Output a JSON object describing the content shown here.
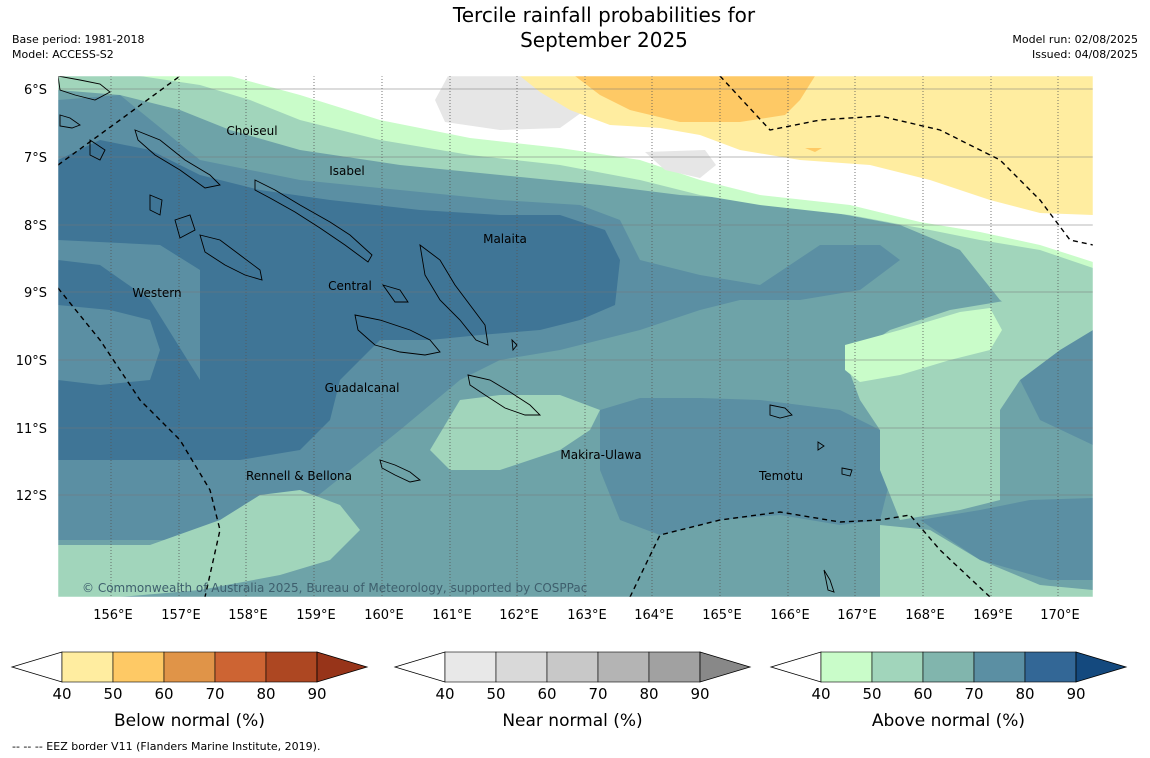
{
  "title": {
    "line1": "Tercile rainfall probabilities for",
    "line2": "September 2025"
  },
  "meta_left": {
    "base_period": "Base period: 1981-2018",
    "model": "Model: ACCESS-S2"
  },
  "meta_right": {
    "model_run": "Model run: 02/08/2025",
    "issued": "Issued: 04/08/2025"
  },
  "map": {
    "lat_labels": [
      "6°S",
      "7°S",
      "8°S",
      "9°S",
      "10°S",
      "11°S",
      "12°S"
    ],
    "lon_labels": [
      "156°E",
      "157°E",
      "158°E",
      "159°E",
      "160°E",
      "161°E",
      "162°E",
      "163°E",
      "164°E",
      "165°E",
      "166°E",
      "167°E",
      "168°E",
      "169°E",
      "170°E"
    ],
    "provinces": [
      "Choiseul",
      "Isabel",
      "Malaita",
      "Western",
      "Central",
      "Guadalcanal",
      "Makira-Ulawa",
      "Rennell & Bellona",
      "Temotu"
    ],
    "copyright": "© Commonwealth of Australia 2025, Bureau of Meteorology, supported by COSPPac"
  },
  "legends": [
    {
      "title": "Below normal (%)",
      "ticks": [
        "40",
        "50",
        "60",
        "70",
        "80",
        "90"
      ],
      "colors": [
        "#ffeda0",
        "#fec965",
        "#e09448",
        "#cd6433",
        "#ad4722",
        "#973419"
      ]
    },
    {
      "title": "Near normal (%)",
      "ticks": [
        "40",
        "50",
        "60",
        "70",
        "80",
        "90"
      ],
      "colors": [
        "#e8e8e8",
        "#d9d9d9",
        "#c8c8c8",
        "#b4b4b4",
        "#a1a1a1",
        "#888888"
      ]
    },
    {
      "title": "Above normal (%)",
      "ticks": [
        "40",
        "50",
        "60",
        "70",
        "80",
        "90"
      ],
      "colors": [
        "#c9fcc9",
        "#a1d5bb",
        "#81b5ad",
        "#5b8fa3",
        "#336796",
        "#14497e"
      ]
    }
  ],
  "footnote": "-- -- -- EEZ border V11 (Flanders Marine Institute, 2019)."
}
